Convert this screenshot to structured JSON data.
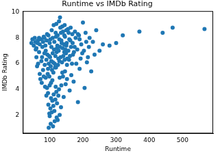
{
  "chart_data": {
    "type": "scatter",
    "title": "Runtime vs IMDb Rating",
    "x_label": "Runtime",
    "y_label": "IMDb Rating",
    "color": "#1f77b4",
    "grid": false,
    "xlim": [
      19,
      592
    ],
    "ylim": [
      0.55,
      10.1
    ],
    "xticks": [
      100,
      200,
      300,
      400,
      500
    ],
    "yticks": [
      2,
      4,
      6,
      8,
      10
    ],
    "x": [
      45,
      48,
      52,
      55,
      58,
      60,
      62,
      65,
      68,
      70,
      72,
      75,
      78,
      80,
      82,
      84,
      86,
      88,
      90,
      92,
      94,
      96,
      98,
      100,
      102,
      104,
      106,
      108,
      110,
      112,
      114,
      116,
      118,
      120,
      122,
      124,
      126,
      128,
      130,
      132,
      134,
      136,
      138,
      140,
      142,
      144,
      146,
      148,
      150,
      152,
      155,
      158,
      160,
      162,
      165,
      168,
      170,
      172,
      175,
      178,
      180,
      183,
      185,
      188,
      190,
      195,
      198,
      200,
      205,
      210,
      215,
      220,
      225,
      230,
      240,
      250,
      260,
      280,
      300,
      320,
      370,
      440,
      470,
      566,
      97,
      103,
      110,
      99,
      115,
      130,
      85,
      90,
      93,
      95,
      97,
      99,
      101,
      103,
      105,
      107,
      109,
      111,
      113,
      115,
      117,
      119,
      121,
      123,
      125,
      127,
      129,
      131,
      133,
      135,
      137,
      139,
      141,
      143,
      145,
      147,
      149,
      151,
      153,
      156,
      159,
      161,
      164,
      167,
      169,
      173,
      88,
      92,
      95,
      100,
      104,
      108,
      112,
      118,
      122,
      126,
      102,
      106,
      111,
      117,
      121,
      128,
      135,
      140,
      146,
      152,
      80,
      84,
      87,
      91,
      96,
      100,
      105,
      109,
      114,
      119,
      124,
      129,
      134,
      138,
      144,
      150,
      157,
      163,
      176,
      185,
      60,
      65,
      70,
      74,
      77,
      82,
      76,
      68,
      63,
      57,
      131,
      120,
      145,
      190,
      193,
      203,
      208,
      212,
      218,
      235
    ],
    "values": [
      7.6,
      7.9,
      7.4,
      8.0,
      7.1,
      6.5,
      5.8,
      7.8,
      6.9,
      7.5,
      4.8,
      6.2,
      7.3,
      5.5,
      8.1,
      6.8,
      4.2,
      7.0,
      3.5,
      8.3,
      5.2,
      2.8,
      6.6,
      1.9,
      7.9,
      4.5,
      8.6,
      3.1,
      6.1,
      9.0,
      2.3,
      5.7,
      8.4,
      3.8,
      7.2,
      1.6,
      6.4,
      9.3,
      4.9,
      8.8,
      2.6,
      7.6,
      5.3,
      8.5,
      3.4,
      6.9,
      8.1,
      4.4,
      7.4,
      5.9,
      8.7,
      6.3,
      3.9,
      7.8,
      5.1,
      8.3,
      6.7,
      4.6,
      7.3,
      8.0,
      6.0,
      7.1,
      3.0,
      8.2,
      5.6,
      7.5,
      6.8,
      9.2,
      4.1,
      7.7,
      6.5,
      8.0,
      5.4,
      7.7,
      8.6,
      7.0,
      7.5,
      7.4,
      7.6,
      8.2,
      8.5,
      8.4,
      8.8,
      8.7,
      1.0,
      1.3,
      1.1,
      2.1,
      1.5,
      2.0,
      5.9,
      6.3,
      6.7,
      5.6,
      6.0,
      5.0,
      6.5,
      5.8,
      6.2,
      5.5,
      6.8,
      5.3,
      7.1,
      6.0,
      6.6,
      5.7,
      6.9,
      7.4,
      5.9,
      7.0,
      6.2,
      7.3,
      6.5,
      7.8,
      6.1,
      7.2,
      6.6,
      7.5,
      6.3,
      7.1,
      6.8,
      7.6,
      6.4,
      7.0,
      7.9,
      6.6,
      7.3,
      6.0,
      7.6,
      6.9,
      4.9,
      4.1,
      3.7,
      4.3,
      3.3,
      4.7,
      3.6,
      4.2,
      2.9,
      3.5,
      2.5,
      2.2,
      2.7,
      3.2,
      1.8,
      4.0,
      4.3,
      5.0,
      5.4,
      4.8,
      7.7,
      8.0,
      7.4,
      7.8,
      8.2,
      7.6,
      7.3,
      8.0,
      7.7,
      8.1,
      8.2,
      7.9,
      8.4,
      8.9,
      8.2,
      8.6,
      8.4,
      8.8,
      8.5,
      8.3,
      7.2,
      6.0,
      5.2,
      7.9,
      6.5,
      5.0,
      4.5,
      8.0,
      7.6,
      7.7,
      9.6,
      9.1,
      9.0,
      7.9,
      6.4,
      7.0,
      8.4,
      6.1,
      7.3,
      6.7
    ]
  }
}
